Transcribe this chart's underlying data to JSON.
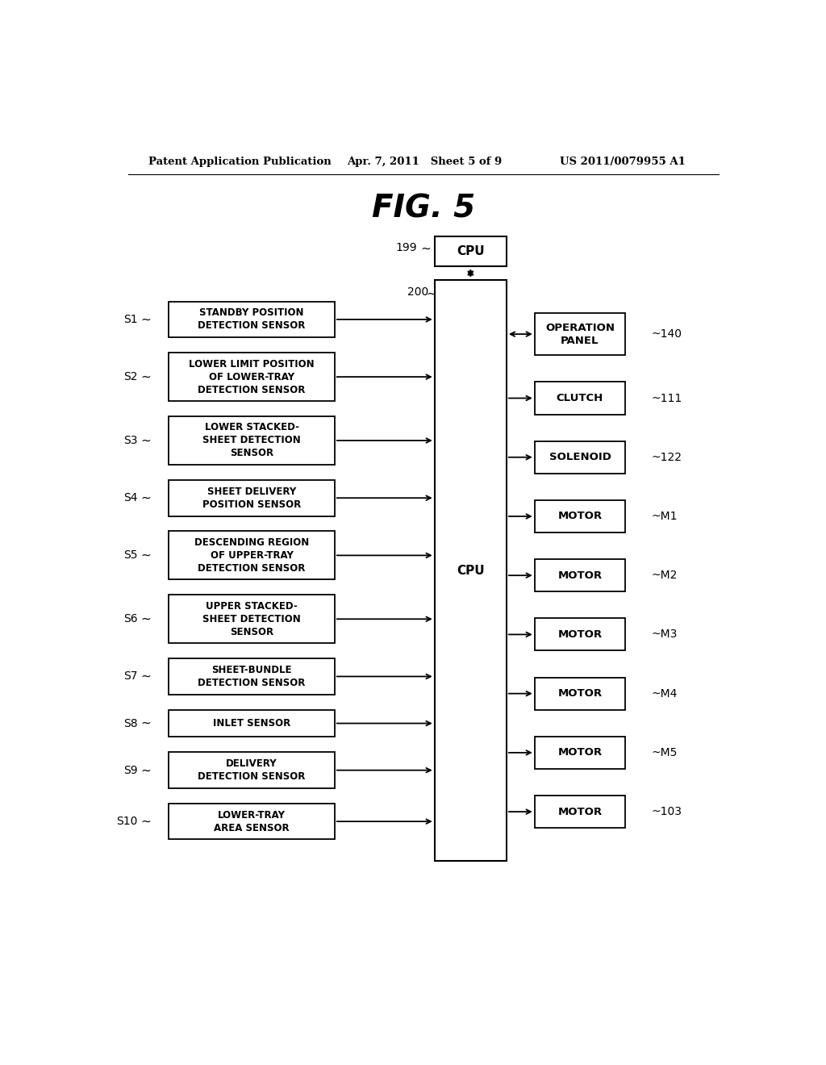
{
  "title": "FIG. 5",
  "header_left": "Patent Application Publication",
  "header_center": "Apr. 7, 2011   Sheet 5 of 9",
  "header_right": "US 2011/0079955 A1",
  "left_sensors": [
    {
      "label": "S1",
      "text": "STANDBY POSITION\nDETECTION SENSOR",
      "lines": 2
    },
    {
      "label": "S2",
      "text": "LOWER LIMIT POSITION\nOF LOWER-TRAY\nDETECTION SENSOR",
      "lines": 3
    },
    {
      "label": "S3",
      "text": "LOWER STACKED-\nSHEET DETECTION\nSENSOR",
      "lines": 3
    },
    {
      "label": "S4",
      "text": "SHEET DELIVERY\nPOSITION SENSOR",
      "lines": 2
    },
    {
      "label": "S5",
      "text": "DESCENDING REGION\nOF UPPER-TRAY\nDETECTION SENSOR",
      "lines": 3
    },
    {
      "label": "S6",
      "text": "UPPER STACKED-\nSHEET DETECTION\nSENSOR",
      "lines": 3
    },
    {
      "label": "S7",
      "text": "SHEET-BUNDLE\nDETECTION SENSOR",
      "lines": 2
    },
    {
      "label": "S8",
      "text": "INLET SENSOR",
      "lines": 1
    },
    {
      "label": "S9",
      "text": "DELIVERY\nDETECTION SENSOR",
      "lines": 2
    },
    {
      "label": "S10",
      "text": "LOWER-TRAY\nAREA SENSOR",
      "lines": 2
    }
  ],
  "right_outputs": [
    {
      "label": "~140",
      "text": "OPERATION\nPANEL",
      "arrow_both": true,
      "lines": 2
    },
    {
      "label": "~111",
      "text": "CLUTCH",
      "arrow_both": false,
      "lines": 1
    },
    {
      "label": "~122",
      "text": "SOLENOID",
      "arrow_both": false,
      "lines": 1
    },
    {
      "label": "~M1",
      "text": "MOTOR",
      "arrow_both": false,
      "lines": 1
    },
    {
      "label": "~M2",
      "text": "MOTOR",
      "arrow_both": false,
      "lines": 1
    },
    {
      "label": "~M3",
      "text": "MOTOR",
      "arrow_both": false,
      "lines": 1
    },
    {
      "label": "~M4",
      "text": "MOTOR",
      "arrow_both": false,
      "lines": 1
    },
    {
      "label": "~M5",
      "text": "MOTOR",
      "arrow_both": false,
      "lines": 1
    },
    {
      "label": "~103",
      "text": "MOTOR",
      "arrow_both": false,
      "lines": 1
    }
  ]
}
